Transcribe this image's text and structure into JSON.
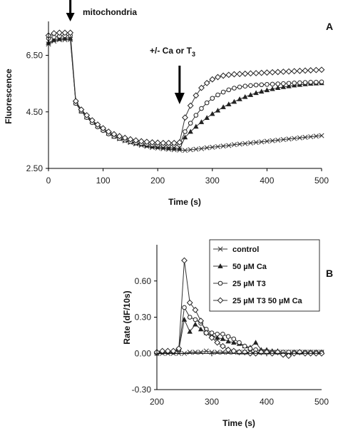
{
  "chart_data": [
    {
      "panel": "A",
      "type": "line",
      "xlabel": "Time (s)",
      "ylabel": "Fluorescence",
      "xlim": [
        0,
        500
      ],
      "ylim": [
        2.5,
        7.7
      ],
      "x_ticks": [
        "0",
        "100",
        "200",
        "300",
        "400",
        "500"
      ],
      "y_ticks": [
        "2.50",
        "4.50",
        "6.50"
      ],
      "annotations": {
        "mitochondria": "mitochondria",
        "addition_prefix": "+/- Ca or T",
        "addition_sub": "3"
      },
      "annotation_x": {
        "mitochondria": 40,
        "addition": 240
      },
      "x": [
        0,
        10,
        20,
        30,
        40,
        50,
        60,
        70,
        80,
        90,
        100,
        110,
        120,
        130,
        140,
        150,
        160,
        170,
        180,
        190,
        200,
        210,
        220,
        230,
        240,
        250,
        260,
        270,
        280,
        290,
        300,
        310,
        320,
        330,
        340,
        350,
        360,
        370,
        380,
        390,
        400,
        410,
        420,
        430,
        440,
        450,
        460,
        470,
        480,
        490,
        500
      ],
      "series": [
        {
          "key": "control",
          "marker": "x",
          "values": [
            6.9,
            7.0,
            7.05,
            7.05,
            7.06,
            4.82,
            4.52,
            4.32,
            4.15,
            4.0,
            3.87,
            3.74,
            3.63,
            3.55,
            3.48,
            3.42,
            3.37,
            3.32,
            3.28,
            3.24,
            3.22,
            3.2,
            3.18,
            3.16,
            3.15,
            3.14,
            3.16,
            3.18,
            3.2,
            3.23,
            3.25,
            3.27,
            3.29,
            3.31,
            3.34,
            3.36,
            3.38,
            3.4,
            3.42,
            3.44,
            3.46,
            3.48,
            3.5,
            3.52,
            3.54,
            3.56,
            3.58,
            3.6,
            3.62,
            3.64,
            3.66
          ]
        },
        {
          "key": "ca",
          "marker": "triangle",
          "values": [
            6.95,
            7.05,
            7.08,
            7.1,
            7.1,
            4.85,
            4.55,
            4.35,
            4.18,
            4.02,
            3.88,
            3.75,
            3.65,
            3.57,
            3.5,
            3.44,
            3.39,
            3.35,
            3.31,
            3.28,
            3.26,
            3.24,
            3.22,
            3.21,
            3.2,
            3.6,
            3.8,
            3.98,
            4.14,
            4.29,
            4.43,
            4.55,
            4.67,
            4.77,
            4.86,
            4.95,
            5.03,
            5.1,
            5.17,
            5.22,
            5.27,
            5.31,
            5.35,
            5.38,
            5.41,
            5.44,
            5.46,
            5.48,
            5.5,
            5.51,
            5.52
          ]
        },
        {
          "key": "t3",
          "marker": "circle",
          "values": [
            7.1,
            7.15,
            7.18,
            7.2,
            7.2,
            4.8,
            4.52,
            4.3,
            4.12,
            3.97,
            3.84,
            3.72,
            3.63,
            3.56,
            3.5,
            3.45,
            3.41,
            3.38,
            3.36,
            3.34,
            3.33,
            3.32,
            3.32,
            3.32,
            3.33,
            3.8,
            4.1,
            4.38,
            4.62,
            4.82,
            4.98,
            5.1,
            5.2,
            5.28,
            5.34,
            5.38,
            5.41,
            5.43,
            5.45,
            5.46,
            5.47,
            5.48,
            5.49,
            5.5,
            5.51,
            5.52,
            5.53,
            5.54,
            5.55,
            5.55,
            5.56
          ]
        },
        {
          "key": "t3ca",
          "marker": "diamond",
          "values": [
            7.2,
            7.28,
            7.3,
            7.3,
            7.3,
            4.88,
            4.58,
            4.38,
            4.2,
            4.05,
            3.92,
            3.8,
            3.71,
            3.64,
            3.58,
            3.53,
            3.49,
            3.46,
            3.44,
            3.42,
            3.41,
            3.4,
            3.4,
            3.4,
            3.42,
            4.3,
            4.72,
            5.08,
            5.35,
            5.52,
            5.65,
            5.73,
            5.78,
            5.81,
            5.83,
            5.84,
            5.85,
            5.86,
            5.87,
            5.88,
            5.89,
            5.9,
            5.91,
            5.92,
            5.93,
            5.94,
            5.95,
            5.96,
            5.97,
            5.98,
            5.99
          ]
        }
      ]
    },
    {
      "panel": "B",
      "type": "line",
      "xlabel": "Time (s)",
      "ylabel": "Rate (dF/10s)",
      "xlim": [
        200,
        500
      ],
      "ylim": [
        -0.3,
        0.9
      ],
      "x_ticks": [
        "200",
        "300",
        "400",
        "500"
      ],
      "y_ticks": [
        "-0.30",
        "0.00",
        "0.30",
        "0.60"
      ],
      "x": [
        200,
        210,
        220,
        230,
        240,
        250,
        260,
        270,
        280,
        290,
        300,
        310,
        320,
        330,
        340,
        350,
        360,
        370,
        380,
        390,
        400,
        410,
        420,
        430,
        440,
        450,
        460,
        470,
        480,
        490,
        500
      ],
      "series": [
        {
          "key": "control",
          "name": "control",
          "marker": "x",
          "values": [
            0.0,
            0.0,
            0.0,
            0.0,
            0.0,
            0.0,
            0.01,
            0.01,
            0.01,
            0.02,
            0.01,
            0.01,
            0.01,
            0.01,
            0.01,
            0.01,
            0.01,
            0.01,
            0.01,
            0.01,
            0.01,
            0.01,
            0.01,
            0.01,
            0.01,
            0.01,
            0.01,
            0.01,
            0.01,
            0.01,
            0.01
          ]
        },
        {
          "key": "ca",
          "name": "50 µM Ca",
          "marker": "triangle",
          "values": [
            0.01,
            0.02,
            0.02,
            0.02,
            0.03,
            0.28,
            0.18,
            0.24,
            0.2,
            0.17,
            0.15,
            0.13,
            0.12,
            0.1,
            0.09,
            0.08,
            0.06,
            0.05,
            0.09,
            0.03,
            0.03,
            0.02,
            0.02,
            0.01,
            0.01,
            0.01,
            0.01,
            0.01,
            0.01,
            0.01,
            0.01
          ]
        },
        {
          "key": "t3",
          "name": "25 µM T3",
          "marker": "circle",
          "values": [
            0.0,
            0.01,
            0.01,
            0.01,
            0.03,
            0.38,
            0.3,
            0.28,
            0.25,
            0.2,
            0.17,
            0.16,
            0.16,
            0.14,
            0.12,
            0.09,
            0.06,
            0.04,
            0.03,
            0.02,
            0.02,
            0.01,
            0.01,
            0.01,
            0.01,
            0.01,
            0.01,
            0.01,
            0.01,
            0.01,
            0.01
          ]
        },
        {
          "key": "t3ca",
          "name": "25 µM T3   50 µM Ca",
          "marker": "diamond",
          "values": [
            0.01,
            0.02,
            0.02,
            0.02,
            0.04,
            0.77,
            0.42,
            0.36,
            0.27,
            0.17,
            0.13,
            0.09,
            0.06,
            0.03,
            0.02,
            0.01,
            0.01,
            0.0,
            0.0,
            0.01,
            0.01,
            0.0,
            0.01,
            -0.01,
            -0.02,
            0.0,
            0.01,
            0.0,
            0.0,
            0.0,
            0.0
          ]
        }
      ]
    }
  ]
}
